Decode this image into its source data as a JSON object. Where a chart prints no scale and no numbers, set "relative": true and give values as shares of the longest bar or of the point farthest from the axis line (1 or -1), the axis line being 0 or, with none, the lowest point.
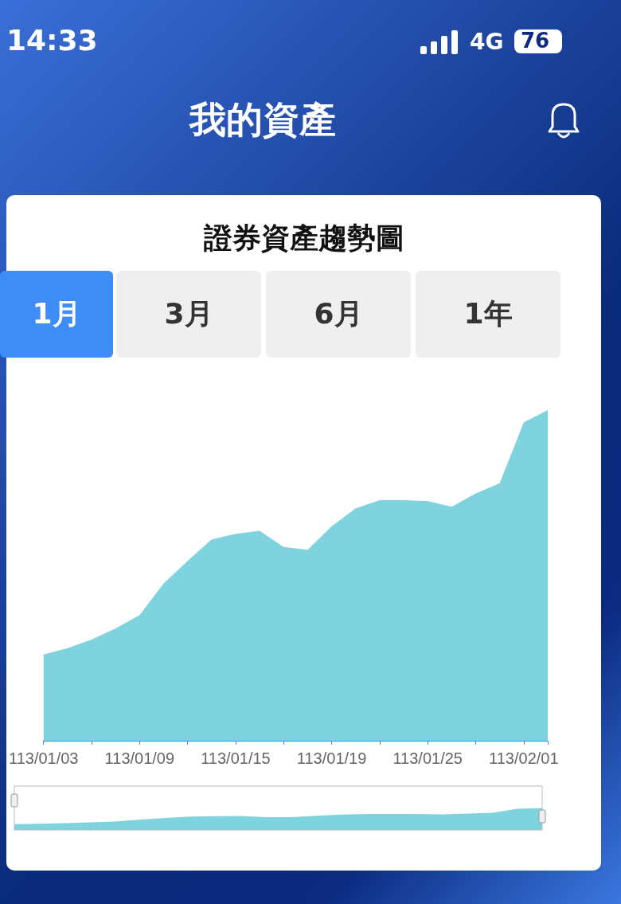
{
  "chart_data": {
    "type": "area",
    "title": "證券資產趨勢圖",
    "relative": true,
    "annotations": [
      "14:33",
      "4G",
      "76",
      "我的資產",
      "1月",
      "3月",
      "6月",
      "1年"
    ],
    "categories": [
      "113/01/03",
      null,
      null,
      null,
      "113/01/09",
      null,
      null,
      null,
      "113/01/15",
      null,
      null,
      null,
      "113/01/19",
      null,
      null,
      null,
      "113/01/25",
      null,
      null,
      null,
      "113/02/01",
      null
    ],
    "series": [
      {
        "color": "#7fd3de",
        "values": [
          0.261,
          0.28,
          0.306,
          0.34,
          0.38,
          0.476,
          0.544,
          0.609,
          0.626,
          0.635,
          0.586,
          0.578,
          0.649,
          0.703,
          0.728,
          0.728,
          0.725,
          0.708,
          0.748,
          0.779,
          0.963,
          1
        ]
      }
    ]
  }
}
